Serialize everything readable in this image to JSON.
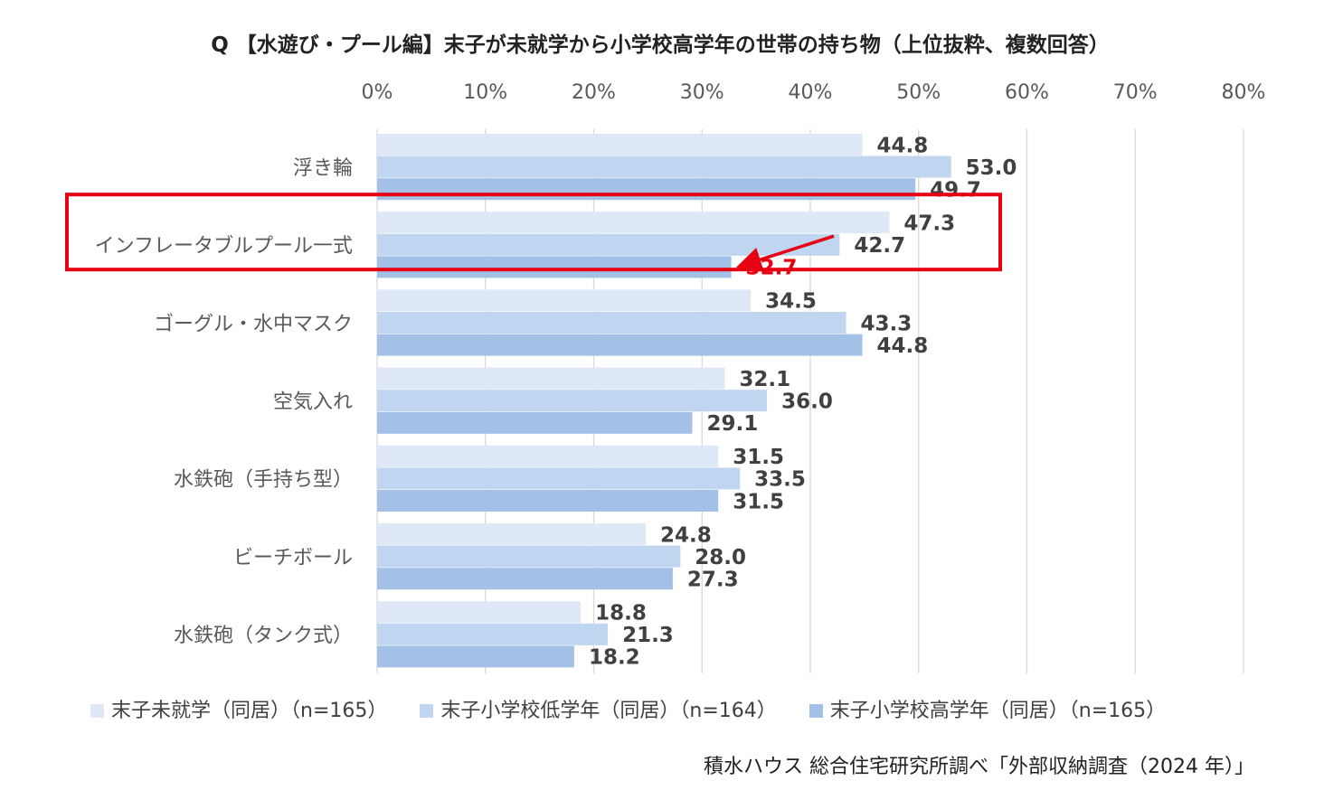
{
  "title": "Q 【水遊び・プール編】末子が未就学から小学校高学年の世帯の持ち物（上位抜粋、複数回答）",
  "source": "積水ハウス 総合住宅研究所調べ「外部収納調査（2024 年）」",
  "colors": {
    "series": [
      "#DEE8F7",
      "#C0D5EF",
      "#A3C1E7"
    ],
    "grid": "#D9D9D9",
    "highlight_box": "#E60012",
    "highlight_text": "#E60012",
    "label_text": "#404040",
    "axis_text": "#595959"
  },
  "chart_data": {
    "type": "bar",
    "orientation": "horizontal",
    "categories": [
      "浮き輪",
      "インフレータブルプール一式",
      "ゴーグル・水中マスク",
      "空気入れ",
      "水鉄砲（手持ち型）",
      "ビーチボール",
      "水鉄砲（タンク式）"
    ],
    "series": [
      {
        "name": "末子未就学（同居）（n=165）",
        "values": [
          44.8,
          47.3,
          34.5,
          32.1,
          31.5,
          24.8,
          18.8
        ]
      },
      {
        "name": "末子小学校低学年（同居）（n=164）",
        "values": [
          53.0,
          42.7,
          43.3,
          36.0,
          33.5,
          28.0,
          21.3
        ]
      },
      {
        "name": "末子小学校高学年（同居）（n=165）",
        "values": [
          49.7,
          32.7,
          44.8,
          29.1,
          31.5,
          27.3,
          18.2
        ]
      }
    ],
    "value_labels": [
      [
        "44.8",
        "47.3",
        "34.5",
        "32.1",
        "31.5",
        "24.8",
        "18.8"
      ],
      [
        "53.0",
        "42.7",
        "43.3",
        "36.0",
        "33.5",
        "28.0",
        "21.3"
      ],
      [
        "49.7",
        "32.7",
        "44.8",
        "29.1",
        "31.5",
        "27.3",
        "18.2"
      ]
    ],
    "xlim": [
      0,
      80
    ],
    "xticks": [
      0,
      10,
      20,
      30,
      40,
      50,
      60,
      70,
      80
    ],
    "xtick_labels": [
      "0%",
      "10%",
      "20%",
      "30%",
      "40%",
      "50%",
      "60%",
      "70%",
      "80%"
    ],
    "x_axis_position": "top",
    "grid": true,
    "legend_position": "bottom",
    "highlight": {
      "category_index": 1,
      "series_index": 2,
      "annotation": "arrow"
    }
  }
}
